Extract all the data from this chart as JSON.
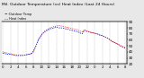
{
  "title": "Mil. Outdoor Temperature (vs) Heat Index (Last 24 Hours)",
  "title_fontsize": 3.2,
  "bg_color": "#e8e8e8",
  "plot_bg": "#ffffff",
  "grid_color": "#888888",
  "line1_color": "#0000dd",
  "line2_color": "#dd0000",
  "ylim": [
    20,
    90
  ],
  "yticks": [
    20,
    30,
    40,
    50,
    60,
    70,
    80,
    90
  ],
  "ylabel_fontsize": 3.0,
  "xlabel_fontsize": 2.8,
  "num_points": 49,
  "temp": [
    38,
    37,
    36,
    36,
    35,
    34,
    34,
    34,
    34,
    35,
    36,
    37,
    41,
    50,
    60,
    67,
    72,
    75,
    77,
    79,
    80,
    81,
    80,
    80,
    79,
    78,
    77,
    76,
    75,
    74,
    72,
    70,
    76,
    74,
    73,
    72,
    71,
    70,
    68,
    67,
    65,
    63,
    60,
    57,
    55,
    53,
    50,
    48,
    46
  ],
  "heat": [
    40,
    39,
    38,
    37,
    36,
    35,
    35,
    35,
    35,
    35,
    36,
    36,
    40,
    50,
    61,
    68,
    73,
    76,
    79,
    81,
    82,
    83,
    84,
    83,
    82,
    81,
    80,
    79,
    78,
    77,
    75,
    73,
    77,
    75,
    73,
    72,
    71,
    70,
    68,
    67,
    65,
    63,
    60,
    57,
    55,
    53,
    51,
    49,
    47
  ],
  "xtick_labels": [
    "0",
    "",
    "",
    "2",
    "",
    "",
    "4",
    "",
    "",
    "6",
    "",
    "",
    "8",
    "",
    "",
    "10",
    "",
    "",
    "12",
    "",
    "",
    "14",
    "",
    "",
    "16",
    "",
    "",
    "18",
    "",
    "",
    "20",
    "",
    "",
    "22",
    "",
    "",
    "0",
    "",
    "",
    "2",
    "",
    "",
    "4",
    "",
    "",
    "6",
    "",
    "",
    "8"
  ],
  "legend_temp": "Outdoor Temp",
  "legend_heat": "Heat Index",
  "figwidth": 1.6,
  "figheight": 0.87,
  "dpi": 100
}
